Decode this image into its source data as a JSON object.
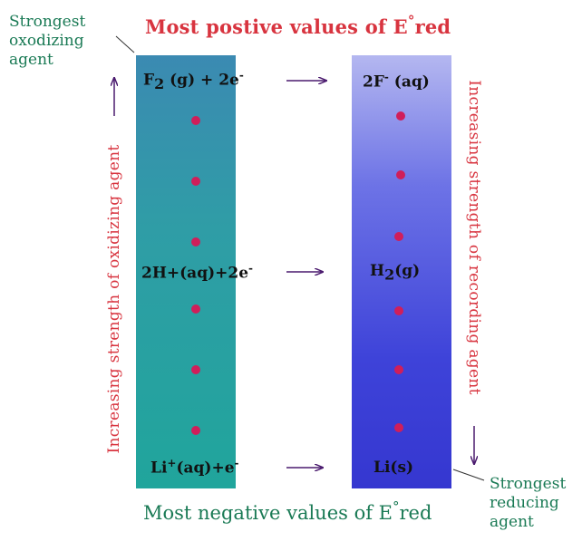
{
  "top_title": "Most postive values of E",
  "top_title_suffix": "red",
  "bottom_title": "Most negative values of E",
  "bottom_title_suffix": "red",
  "degree": "°",
  "strongest_oxidizing": [
    "Strongest",
    "oxodizing",
    "agent"
  ],
  "strongest_reducing": [
    "Strongest",
    "reducing",
    "agent"
  ],
  "left_axis_label": "Increasing strength of oxidizing agent",
  "right_axis_label": "Increasing strength of recording agent",
  "rows": [
    {
      "left": {
        "pre": "F",
        "sub": "2",
        "mid": " (g) + 2e",
        "sup": "-",
        "post": ""
      },
      "right": {
        "pre": "2F",
        "sub": "",
        "mid": " ",
        "sup": "-",
        "post": " (aq)"
      }
    },
    {
      "left": {
        "pre": "2H+(aq)+2e",
        "sub": "",
        "mid": "",
        "sup": "-",
        "post": ""
      },
      "right": {
        "pre": "H",
        "sub": "2",
        "mid": "(g)",
        "sup": "",
        "post": ""
      }
    },
    {
      "left": {
        "pre": "Li",
        "sub": "",
        "mid": "",
        "sup": "+",
        "post": "(aq)+e"
      },
      "right": {
        "pre": "Li(s)",
        "sub": "",
        "mid": "",
        "sup": "",
        "post": ""
      }
    }
  ],
  "li_minus": "-",
  "colors": {
    "red_text": "#d8343f",
    "green_text": "#1a7a55",
    "arrow": "#4a1a6e",
    "dot": "#d01e5a"
  }
}
